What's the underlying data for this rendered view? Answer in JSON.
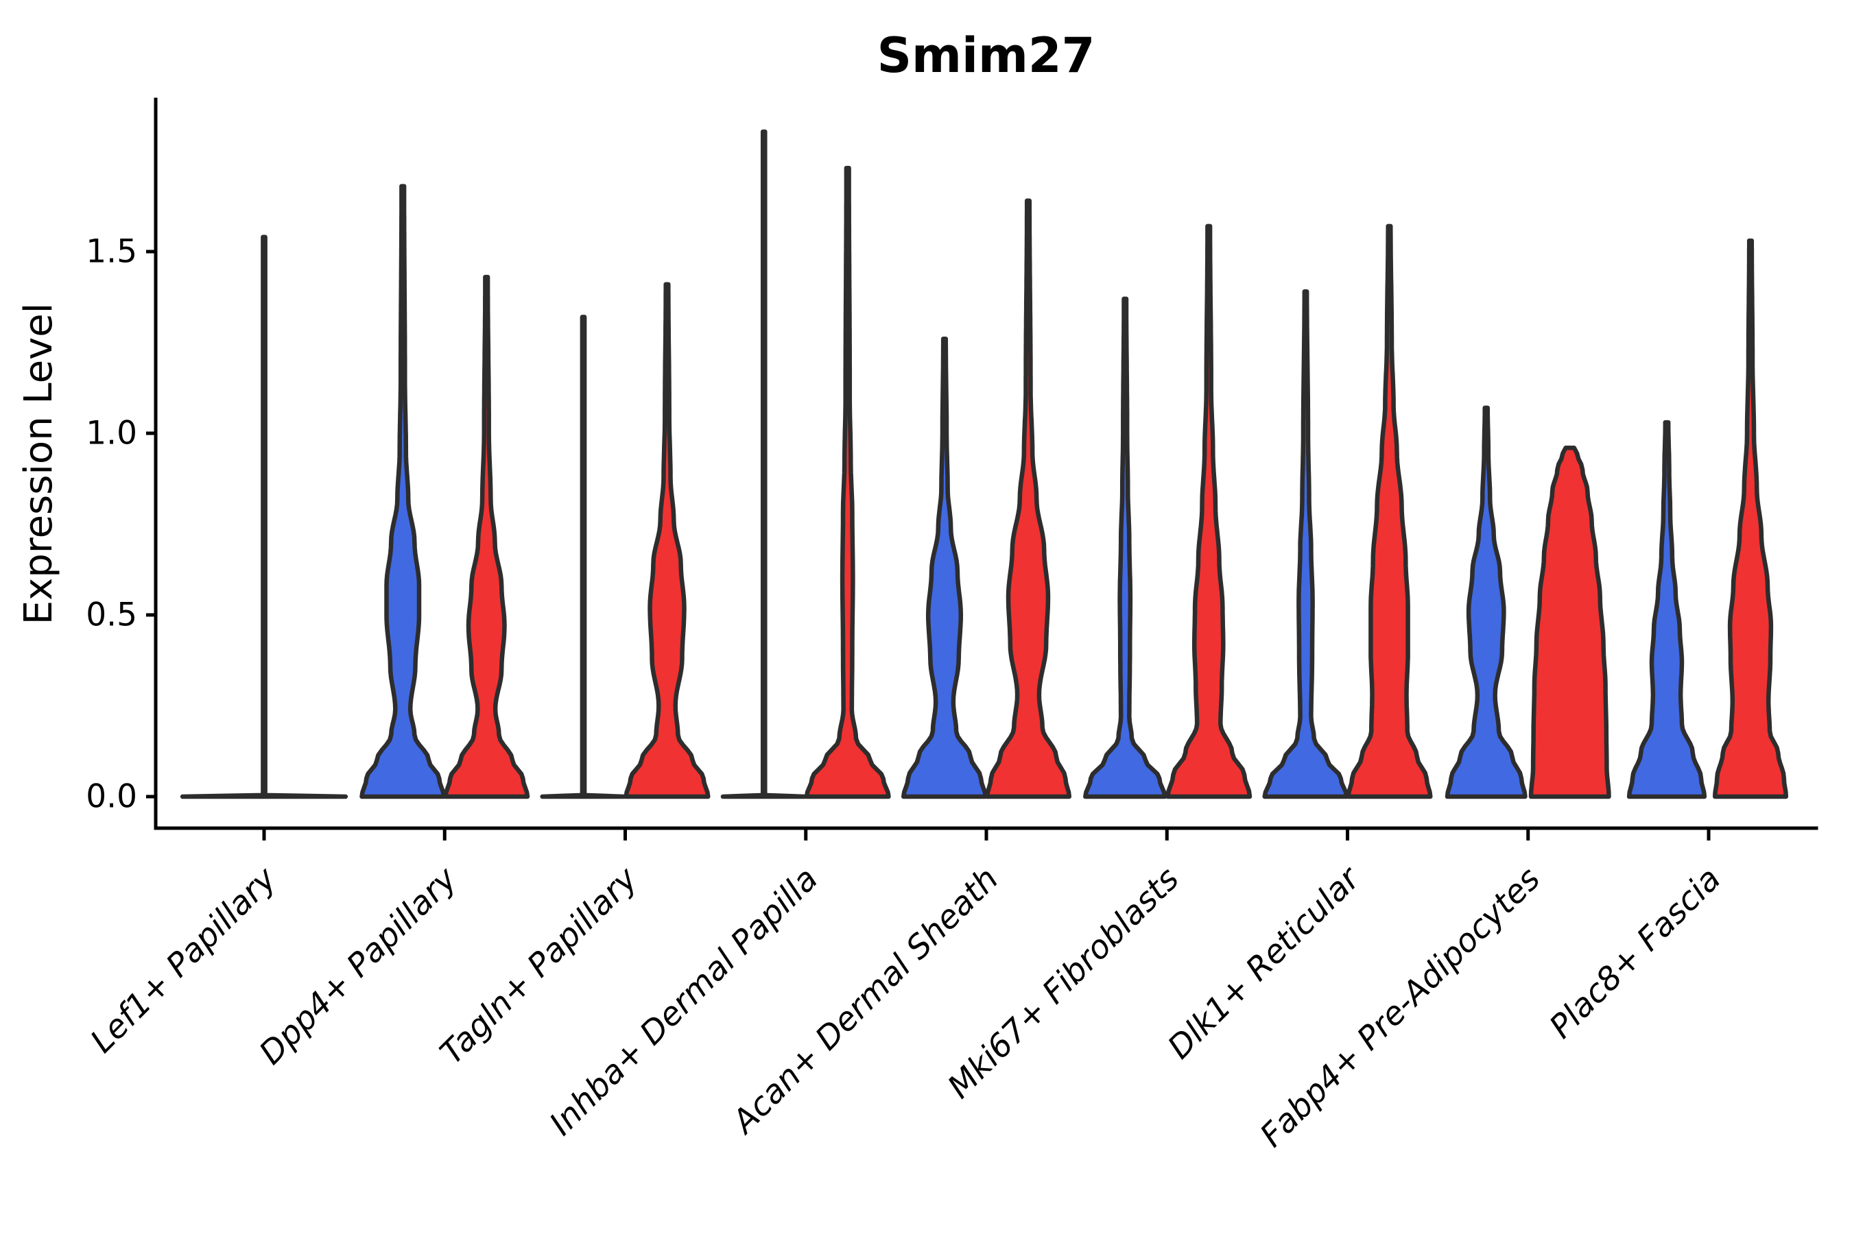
{
  "title": "Smim27",
  "colors": {
    "blue": "#4169E1",
    "red": "#F03232",
    "single": "#FFFFFF",
    "outline": "#2D2D2D",
    "axis": "#000000"
  },
  "chart_data": {
    "type": "violin",
    "title": "Smim27",
    "xlabel": "",
    "ylabel": "Expression Level",
    "ylim": [
      -0.09,
      1.92
    ],
    "yticks": [
      0.0,
      0.5,
      1.0,
      1.5
    ],
    "ytick_labels": [
      "0.0",
      "0.5",
      "1.0",
      "1.5"
    ],
    "grid": false,
    "legend": "none",
    "categories": [
      "Lef1+ Papillary",
      "Dpp4+ Papillary",
      "Tagln+ Papillary",
      "Inhba+ Dermal Papilla",
      "Acan+ Dermal Sheath",
      "Mki67+ Fibroblasts",
      "Dlk1+ Reticular",
      "Fabp4+ Pre-Adipocytes",
      "Plac8+ Fascia"
    ],
    "groups": [
      {
        "category": "Lef1+ Papillary",
        "violins": [
          {
            "split": "single",
            "color": "single",
            "max": 1.54,
            "profile": [
              [
                0,
                1.95
              ],
              [
                0.004,
                0.026
              ],
              [
                1.54,
                0.026
              ]
            ]
          }
        ]
      },
      {
        "category": "Dpp4+ Papillary",
        "violins": [
          {
            "split": "left",
            "color": "blue",
            "max": 1.68,
            "profile": [
              [
                0,
                0.98
              ],
              [
                0.05,
                0.87
              ],
              [
                0.1,
                0.62
              ],
              [
                0.17,
                0.28
              ],
              [
                0.24,
                0.18
              ],
              [
                0.36,
                0.3
              ],
              [
                0.5,
                0.39
              ],
              [
                0.58,
                0.39
              ],
              [
                0.7,
                0.28
              ],
              [
                0.82,
                0.13
              ],
              [
                0.95,
                0.075
              ],
              [
                1.15,
                0.05
              ],
              [
                1.68,
                0.03
              ]
            ]
          },
          {
            "split": "right",
            "color": "red",
            "max": 1.43,
            "profile": [
              [
                0,
                0.98
              ],
              [
                0.05,
                0.87
              ],
              [
                0.1,
                0.62
              ],
              [
                0.17,
                0.3
              ],
              [
                0.24,
                0.21
              ],
              [
                0.35,
                0.36
              ],
              [
                0.47,
                0.43
              ],
              [
                0.58,
                0.36
              ],
              [
                0.7,
                0.2
              ],
              [
                0.82,
                0.1
              ],
              [
                1.0,
                0.057
              ],
              [
                1.43,
                0.03
              ]
            ]
          }
        ]
      },
      {
        "category": "Tagln+ Papillary",
        "violins": [
          {
            "split": "left",
            "color": "blue",
            "max": 1.32,
            "profile": [
              [
                0,
                0.98
              ],
              [
                0.004,
                0.026
              ],
              [
                1.32,
                0.026
              ]
            ]
          },
          {
            "split": "right",
            "color": "red",
            "max": 1.41,
            "profile": [
              [
                0,
                0.98
              ],
              [
                0.05,
                0.87
              ],
              [
                0.1,
                0.61
              ],
              [
                0.17,
                0.26
              ],
              [
                0.25,
                0.2
              ],
              [
                0.38,
                0.36
              ],
              [
                0.52,
                0.41
              ],
              [
                0.64,
                0.33
              ],
              [
                0.76,
                0.16
              ],
              [
                0.88,
                0.082
              ],
              [
                1.05,
                0.052
              ],
              [
                1.41,
                0.03
              ]
            ]
          }
        ]
      },
      {
        "category": "Inhba+ Dermal Papilla",
        "violins": [
          {
            "split": "left",
            "color": "blue",
            "max": 1.83,
            "profile": [
              [
                0,
                0.98
              ],
              [
                0.004,
                0.026
              ],
              [
                1.83,
                0.026
              ]
            ]
          },
          {
            "split": "right",
            "color": "red",
            "max": 1.73,
            "profile": [
              [
                0,
                0.98
              ],
              [
                0.05,
                0.85
              ],
              [
                0.1,
                0.54
              ],
              [
                0.16,
                0.2
              ],
              [
                0.24,
                0.1
              ],
              [
                0.4,
                0.11
              ],
              [
                0.6,
                0.125
              ],
              [
                0.78,
                0.11
              ],
              [
                0.92,
                0.075
              ],
              [
                1.1,
                0.05
              ],
              [
                1.73,
                0.03
              ]
            ]
          }
        ]
      },
      {
        "category": "Acan+ Dermal Sheath",
        "violins": [
          {
            "split": "left",
            "color": "blue",
            "max": 1.26,
            "profile": [
              [
                0,
                0.98
              ],
              [
                0.05,
                0.87
              ],
              [
                0.11,
                0.62
              ],
              [
                0.18,
                0.28
              ],
              [
                0.26,
                0.21
              ],
              [
                0.38,
                0.34
              ],
              [
                0.5,
                0.39
              ],
              [
                0.62,
                0.31
              ],
              [
                0.74,
                0.15
              ],
              [
                0.85,
                0.075
              ],
              [
                1.0,
                0.05
              ],
              [
                1.26,
                0.03
              ]
            ]
          },
          {
            "split": "right",
            "color": "red",
            "max": 1.64,
            "profile": [
              [
                0,
                0.98
              ],
              [
                0.05,
                0.89
              ],
              [
                0.11,
                0.67
              ],
              [
                0.19,
                0.34
              ],
              [
                0.28,
                0.26
              ],
              [
                0.42,
                0.43
              ],
              [
                0.55,
                0.475
              ],
              [
                0.68,
                0.38
              ],
              [
                0.82,
                0.2
              ],
              [
                0.95,
                0.1
              ],
              [
                1.12,
                0.057
              ],
              [
                1.64,
                0.03
              ]
            ]
          }
        ]
      },
      {
        "category": "Mki67+ Fibroblasts",
        "violins": [
          {
            "split": "left",
            "color": "blue",
            "max": 1.37,
            "profile": [
              [
                0,
                0.95
              ],
              [
                0.05,
                0.82
              ],
              [
                0.1,
                0.49
              ],
              [
                0.16,
                0.16
              ],
              [
                0.22,
                0.1
              ],
              [
                0.4,
                0.115
              ],
              [
                0.55,
                0.125
              ],
              [
                0.7,
                0.1
              ],
              [
                0.85,
                0.066
              ],
              [
                1.0,
                0.049
              ],
              [
                1.37,
                0.028
              ]
            ]
          },
          {
            "split": "right",
            "color": "red",
            "max": 1.57,
            "profile": [
              [
                0,
                0.98
              ],
              [
                0.06,
                0.85
              ],
              [
                0.12,
                0.56
              ],
              [
                0.2,
                0.28
              ],
              [
                0.3,
                0.31
              ],
              [
                0.42,
                0.345
              ],
              [
                0.52,
                0.33
              ],
              [
                0.65,
                0.25
              ],
              [
                0.8,
                0.16
              ],
              [
                0.95,
                0.1
              ],
              [
                1.12,
                0.057
              ],
              [
                1.57,
                0.03
              ]
            ]
          }
        ]
      },
      {
        "category": "Dlk1+ Reticular",
        "violins": [
          {
            "split": "left",
            "color": "blue",
            "max": 1.39,
            "profile": [
              [
                0,
                0.98
              ],
              [
                0.05,
                0.84
              ],
              [
                0.1,
                0.52
              ],
              [
                0.16,
                0.2
              ],
              [
                0.22,
                0.13
              ],
              [
                0.38,
                0.155
              ],
              [
                0.54,
                0.165
              ],
              [
                0.68,
                0.13
              ],
              [
                0.82,
                0.082
              ],
              [
                1.0,
                0.057
              ],
              [
                1.39,
                0.028
              ]
            ]
          },
          {
            "split": "right",
            "color": "red",
            "max": 1.57,
            "profile": [
              [
                0,
                0.98
              ],
              [
                0.05,
                0.89
              ],
              [
                0.11,
                0.66
              ],
              [
                0.18,
                0.43
              ],
              [
                0.28,
                0.41
              ],
              [
                0.4,
                0.445
              ],
              [
                0.52,
                0.445
              ],
              [
                0.65,
                0.39
              ],
              [
                0.8,
                0.295
              ],
              [
                0.95,
                0.18
              ],
              [
                1.08,
                0.1
              ],
              [
                1.25,
                0.057
              ],
              [
                1.57,
                0.03
              ]
            ]
          }
        ]
      },
      {
        "category": "Fabp4+ Pre-Adipocytes",
        "violins": [
          {
            "split": "left",
            "color": "blue",
            "max": 1.07,
            "profile": [
              [
                0,
                0.93
              ],
              [
                0.05,
                0.84
              ],
              [
                0.11,
                0.62
              ],
              [
                0.18,
                0.3
              ],
              [
                0.28,
                0.21
              ],
              [
                0.4,
                0.38
              ],
              [
                0.51,
                0.42
              ],
              [
                0.62,
                0.33
              ],
              [
                0.72,
                0.18
              ],
              [
                0.82,
                0.09
              ],
              [
                0.95,
                0.05
              ],
              [
                1.07,
                0.033
              ]
            ]
          },
          {
            "split": "right",
            "color": "red",
            "max": 0.96,
            "profile": [
              [
                0,
                0.93
              ],
              [
                0.08,
                0.88
              ],
              [
                0.18,
                0.87
              ],
              [
                0.3,
                0.85
              ],
              [
                0.42,
                0.8
              ],
              [
                0.55,
                0.72
              ],
              [
                0.66,
                0.62
              ],
              [
                0.76,
                0.52
              ],
              [
                0.84,
                0.42
              ],
              [
                0.9,
                0.3
              ],
              [
                0.945,
                0.17
              ],
              [
                0.96,
                0.1
              ]
            ]
          }
        ]
      },
      {
        "category": "Plac8+ Fascia",
        "violins": [
          {
            "split": "left",
            "color": "blue",
            "max": 1.03,
            "profile": [
              [
                0,
                0.9
              ],
              [
                0.05,
                0.82
              ],
              [
                0.12,
                0.62
              ],
              [
                0.2,
                0.36
              ],
              [
                0.28,
                0.33
              ],
              [
                0.37,
                0.36
              ],
              [
                0.46,
                0.31
              ],
              [
                0.56,
                0.21
              ],
              [
                0.66,
                0.13
              ],
              [
                0.78,
                0.082
              ],
              [
                0.9,
                0.057
              ],
              [
                1.03,
                0.036
              ]
            ]
          },
          {
            "split": "right",
            "color": "red",
            "max": 1.53,
            "profile": [
              [
                0,
                0.85
              ],
              [
                0.05,
                0.8
              ],
              [
                0.12,
                0.66
              ],
              [
                0.18,
                0.46
              ],
              [
                0.26,
                0.43
              ],
              [
                0.38,
                0.475
              ],
              [
                0.47,
                0.49
              ],
              [
                0.58,
                0.41
              ],
              [
                0.72,
                0.26
              ],
              [
                0.85,
                0.15
              ],
              [
                1.0,
                0.082
              ],
              [
                1.2,
                0.049
              ],
              [
                1.53,
                0.03
              ]
            ]
          }
        ]
      }
    ]
  }
}
